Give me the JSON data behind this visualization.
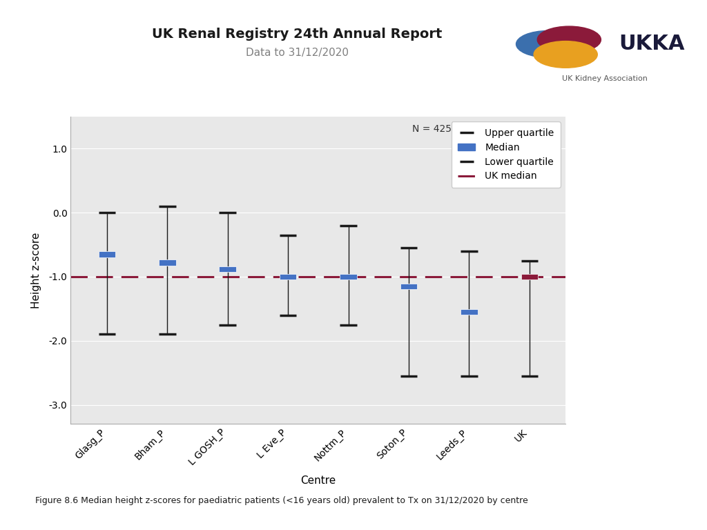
{
  "title": "UK Renal Registry 24th Annual Report",
  "subtitle": "Data to 31/12/2020",
  "xlabel": "Centre",
  "ylabel": "Height z-score",
  "n_label": "N = 425",
  "uk_median": -1.0,
  "centers": [
    "Glasg_P",
    "Bham_P",
    "L GOSH_P",
    "L Eve_P",
    "Nottm_P",
    "Soton_P",
    "Leeds_P",
    "UK"
  ],
  "medians": [
    -0.65,
    -0.78,
    -0.88,
    -1.0,
    -1.0,
    -1.15,
    -1.55,
    -1.0
  ],
  "upper_quartiles": [
    0.0,
    0.1,
    0.0,
    -0.35,
    -0.2,
    -0.55,
    -0.6,
    -0.75
  ],
  "lower_quartiles": [
    -1.9,
    -1.9,
    -1.75,
    -1.6,
    -1.75,
    -2.55,
    -2.55,
    -2.55
  ],
  "median_color": "#4472C4",
  "uk_square_color": "#8B1A3A",
  "quartile_color": "#1a1a1a",
  "uk_median_color": "#8B1A3A",
  "ylim": [
    -3.3,
    1.5
  ],
  "yticks": [
    1.0,
    0.0,
    -1.0,
    -2.0,
    -3.0
  ],
  "fig_caption": "Figure 8.6 Median height z-scores for paediatric patients (<16 years old) prevalent to Tx on 31/12/2020 by centre",
  "plot_bg_color": "#E8E8E8",
  "title_color": "#1a1a1a",
  "subtitle_color": "#808080",
  "logo_text": "UKKA",
  "logo_subtext": "UK Kidney Association",
  "logo_circle_colors": [
    "#3B6FAD",
    "#E8A020",
    "#8B1A3A"
  ],
  "legend_labels": [
    "Upper quartile",
    "Median",
    "Lower quartile",
    "UK median"
  ]
}
